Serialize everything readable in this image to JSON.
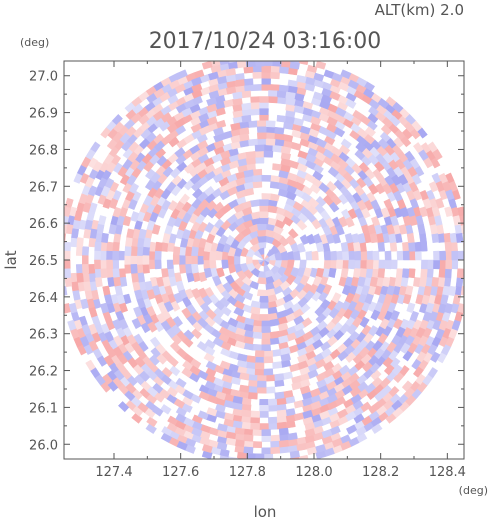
{
  "chart_data": {
    "type": "heatmap",
    "title": "2017/10/24 03:16:00",
    "subtitle": "ALT(km) 2.0",
    "xlabel": "lon",
    "ylabel": "lat",
    "xunit": "(deg)",
    "yunit": "(deg)",
    "xlim": [
      127.25,
      128.45
    ],
    "ylim": [
      25.96,
      27.04
    ],
    "x_ticks": [
      "127.4",
      "127.6",
      "127.8",
      "128.0",
      "128.2",
      "128.4"
    ],
    "y_ticks": [
      "26.0",
      "26.1",
      "26.2",
      "26.3",
      "26.4",
      "26.5",
      "26.6",
      "26.7",
      "26.8",
      "26.9",
      "27.0"
    ],
    "radar_center": [
      127.85,
      26.5
    ],
    "field_shape": "circular polar scan",
    "colors": {
      "positive": "#f7a8a8",
      "negative": "#a8a8f2",
      "neutral": "#ffffff",
      "axis": "#555555"
    }
  }
}
